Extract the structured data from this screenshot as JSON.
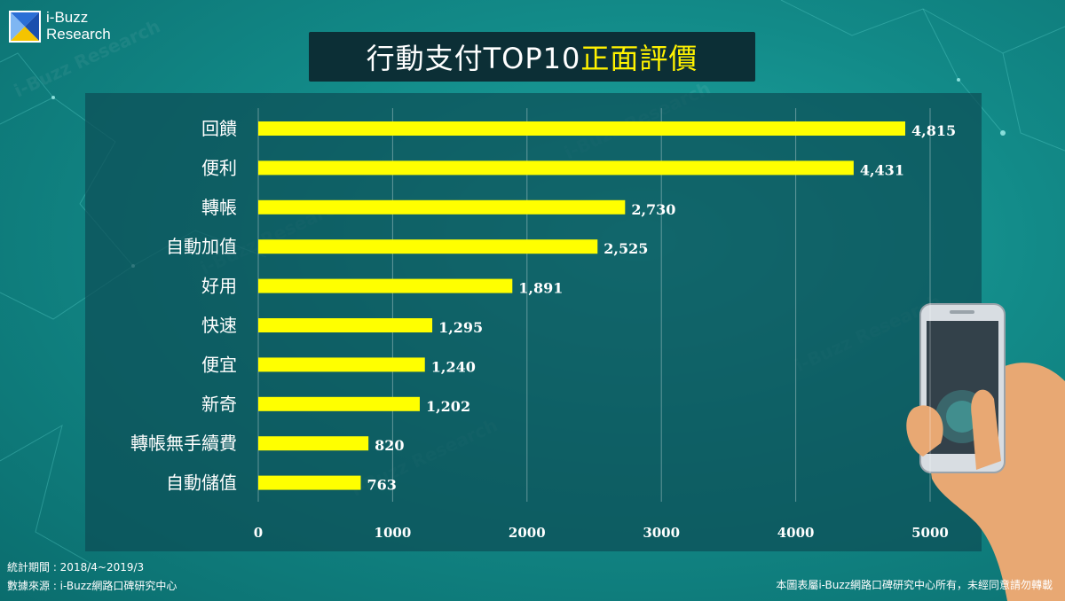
{
  "brand": {
    "line1": "i-Buzz",
    "line2": "Research"
  },
  "title": {
    "main": "行動支付TOP10",
    "highlight": "正面評價"
  },
  "chart_data": {
    "type": "bar",
    "orientation": "horizontal",
    "categories": [
      "回饋",
      "便利",
      "轉帳",
      "自動加值",
      "好用",
      "快速",
      "便宜",
      "新奇",
      "轉帳無手續費",
      "自動儲值"
    ],
    "values": [
      4815,
      4431,
      2730,
      2525,
      1891,
      1295,
      1240,
      1202,
      820,
      763
    ],
    "value_labels": [
      "4,815",
      "4,431",
      "2,730",
      "2,525",
      "1,891",
      "1,295",
      "1,240",
      "1,202",
      "820",
      "763"
    ],
    "xlim": [
      0,
      5000
    ],
    "x_ticks": [
      0,
      1000,
      2000,
      3000,
      4000,
      5000
    ],
    "grid": true,
    "bar_color": "#ffff00"
  },
  "footer": {
    "period": "統計期間 : 2018/4~2019/3",
    "source": "數據來源 : i-Buzz網路口碑研究中心",
    "copyright": "本圖表屬i-Buzz網路口碑研究中心所有，未經同意請勿轉載"
  },
  "colors": {
    "title_bg": "#0c2f36",
    "highlight": "#fff200",
    "background": "#128a88"
  }
}
